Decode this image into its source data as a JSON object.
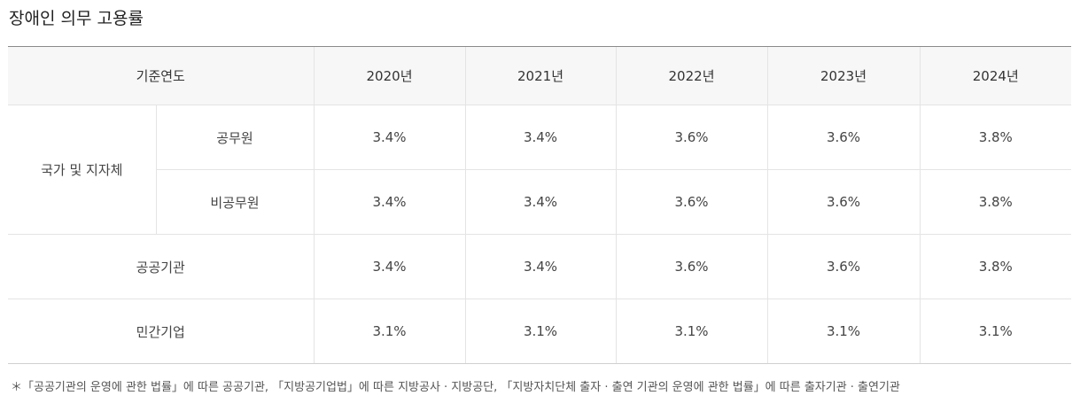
{
  "page": {
    "title": "장애인 의무 고용률"
  },
  "table": {
    "header_label": "기준연도",
    "years": [
      "2020년",
      "2021년",
      "2022년",
      "2023년",
      "2024년"
    ],
    "groups": {
      "national": {
        "label": "국가 및 지자체",
        "rows": [
          {
            "label": "공무원",
            "values": [
              "3.4%",
              "3.4%",
              "3.6%",
              "3.6%",
              "3.8%"
            ]
          },
          {
            "label": "비공무원",
            "values": [
              "3.4%",
              "3.4%",
              "3.6%",
              "3.6%",
              "3.8%"
            ]
          }
        ]
      },
      "public": {
        "label": "공공기관",
        "values": [
          "3.4%",
          "3.4%",
          "3.6%",
          "3.6%",
          "3.8%"
        ]
      },
      "private": {
        "label": "민간기업",
        "values": [
          "3.1%",
          "3.1%",
          "3.1%",
          "3.1%",
          "3.1%"
        ]
      }
    }
  },
  "footnote": "＊「공공기관의 운영에 관한 법률」에 따른 공공기관, 「지방공기업법」에 따른 지방공사 · 지방공단, 「지방자치단체 출자 · 출연 기관의 운영에 관한 법률」에 따른 출자기관 · 출연기관"
}
